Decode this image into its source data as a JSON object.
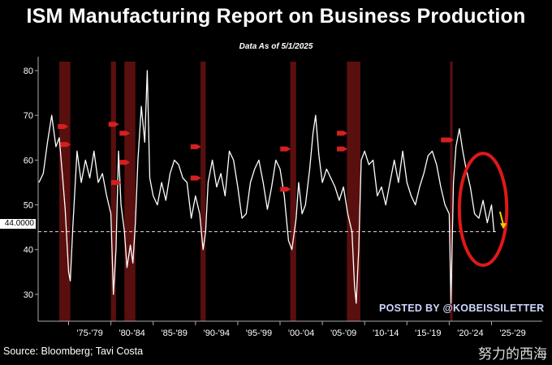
{
  "title": "ISM Manufacturing Report on Business Production",
  "subtitle": "Data As of 5/1/2025",
  "source": "Source: Bloomberg; Tavi Costa",
  "posted_by": "POSTED BY @KOBEISSILETTER",
  "watermark": "努力的西海",
  "reference_line_label": "44.0000",
  "colors": {
    "background": "#000000",
    "line": "#ffffff",
    "recession": "#5a0f0f",
    "circle": "#e01818",
    "arrow": "#f5d000",
    "marker": "#d42020"
  },
  "chart_data": {
    "type": "line",
    "title": "ISM Manufacturing Report on Business Production",
    "ylim": [
      24,
      82
    ],
    "xlim": [
      1971.4,
      2031.0
    ],
    "yticks": [
      30,
      40,
      50,
      60,
      70,
      80
    ],
    "x_tick_labels": [
      "'75-'79",
      "'80-'84",
      "'85-'89",
      "'90-'94",
      "'95-'99",
      "'00-'04",
      "'05-'09",
      "'10-'14",
      "'15-'19",
      "'20-'24",
      "'25-'29"
    ],
    "reference_line": 44.0,
    "recession_periods": [
      [
        1973.9,
        1975.2
      ],
      [
        1980.0,
        1980.6
      ],
      [
        1981.6,
        1982.9
      ],
      [
        1990.6,
        1991.2
      ],
      [
        2001.2,
        2001.9
      ],
      [
        2007.9,
        2009.5
      ],
      [
        2020.1,
        2020.4
      ]
    ],
    "series": [
      {
        "values": [
          [
            1971.5,
            55
          ],
          [
            1972.0,
            57
          ],
          [
            1972.5,
            64
          ],
          [
            1973.0,
            70
          ],
          [
            1973.5,
            63
          ],
          [
            1973.9,
            65
          ],
          [
            1974.3,
            56
          ],
          [
            1974.6,
            49
          ],
          [
            1975.0,
            35
          ],
          [
            1975.2,
            33
          ],
          [
            1975.5,
            45
          ],
          [
            1976.0,
            62
          ],
          [
            1976.5,
            55
          ],
          [
            1977.0,
            60
          ],
          [
            1977.5,
            56
          ],
          [
            1978.0,
            62
          ],
          [
            1978.5,
            55
          ],
          [
            1979.0,
            57
          ],
          [
            1979.5,
            52
          ],
          [
            1980.0,
            48
          ],
          [
            1980.3,
            30
          ],
          [
            1980.6,
            40
          ],
          [
            1980.9,
            62
          ],
          [
            1981.2,
            50
          ],
          [
            1981.6,
            44
          ],
          [
            1981.9,
            36
          ],
          [
            1982.3,
            41
          ],
          [
            1982.6,
            37
          ],
          [
            1982.9,
            46
          ],
          [
            1983.2,
            60
          ],
          [
            1983.6,
            72
          ],
          [
            1984.0,
            64
          ],
          [
            1984.3,
            80
          ],
          [
            1984.6,
            56
          ],
          [
            1985.0,
            52
          ],
          [
            1985.5,
            50
          ],
          [
            1986.0,
            55
          ],
          [
            1986.5,
            51
          ],
          [
            1987.0,
            57
          ],
          [
            1987.5,
            60
          ],
          [
            1988.0,
            59
          ],
          [
            1988.5,
            56
          ],
          [
            1989.0,
            55
          ],
          [
            1989.5,
            47
          ],
          [
            1990.0,
            52
          ],
          [
            1990.5,
            48
          ],
          [
            1990.9,
            40
          ],
          [
            1991.2,
            44
          ],
          [
            1991.5,
            55
          ],
          [
            1992.0,
            60
          ],
          [
            1992.5,
            54
          ],
          [
            1993.0,
            57
          ],
          [
            1993.5,
            52
          ],
          [
            1994.0,
            62
          ],
          [
            1994.5,
            60
          ],
          [
            1995.0,
            54
          ],
          [
            1995.5,
            47
          ],
          [
            1996.0,
            48
          ],
          [
            1996.5,
            55
          ],
          [
            1997.0,
            58
          ],
          [
            1997.5,
            60
          ],
          [
            1998.0,
            55
          ],
          [
            1998.5,
            49
          ],
          [
            1999.0,
            54
          ],
          [
            1999.5,
            60
          ],
          [
            2000.0,
            58
          ],
          [
            2000.5,
            52
          ],
          [
            2001.0,
            42
          ],
          [
            2001.4,
            40
          ],
          [
            2001.9,
            47
          ],
          [
            2002.2,
            55
          ],
          [
            2002.6,
            48
          ],
          [
            2003.0,
            50
          ],
          [
            2003.5,
            58
          ],
          [
            2003.9,
            66
          ],
          [
            2004.2,
            70
          ],
          [
            2004.6,
            61
          ],
          [
            2005.0,
            55
          ],
          [
            2005.5,
            58
          ],
          [
            2006.0,
            56
          ],
          [
            2006.5,
            54
          ],
          [
            2007.0,
            51
          ],
          [
            2007.5,
            54
          ],
          [
            2008.0,
            48
          ],
          [
            2008.5,
            44
          ],
          [
            2008.8,
            32
          ],
          [
            2009.0,
            28
          ],
          [
            2009.3,
            40
          ],
          [
            2009.6,
            60
          ],
          [
            2010.0,
            62
          ],
          [
            2010.5,
            59
          ],
          [
            2011.0,
            60
          ],
          [
            2011.5,
            52
          ],
          [
            2012.0,
            54
          ],
          [
            2012.5,
            50
          ],
          [
            2013.0,
            55
          ],
          [
            2013.5,
            60
          ],
          [
            2014.0,
            55
          ],
          [
            2014.5,
            62
          ],
          [
            2015.0,
            55
          ],
          [
            2015.5,
            52
          ],
          [
            2016.0,
            50
          ],
          [
            2016.5,
            54
          ],
          [
            2017.0,
            57
          ],
          [
            2017.5,
            61
          ],
          [
            2018.0,
            62
          ],
          [
            2018.5,
            59
          ],
          [
            2019.0,
            54
          ],
          [
            2019.5,
            50
          ],
          [
            2020.0,
            48
          ],
          [
            2020.2,
            28
          ],
          [
            2020.5,
            55
          ],
          [
            2020.8,
            63
          ],
          [
            2021.2,
            67
          ],
          [
            2021.6,
            62
          ],
          [
            2022.0,
            58
          ],
          [
            2022.5,
            54
          ],
          [
            2023.0,
            48
          ],
          [
            2023.5,
            47
          ],
          [
            2024.0,
            51
          ],
          [
            2024.5,
            46
          ],
          [
            2025.0,
            50
          ],
          [
            2025.3,
            44
          ]
        ]
      }
    ],
    "annotations": {
      "peak_markers": [
        [
          1974.3,
          67.5
        ],
        [
          1974.6,
          63.5
        ],
        [
          1980.3,
          68.0
        ],
        [
          1980.6,
          55.0
        ],
        [
          1981.6,
          66.0
        ],
        [
          1981.6,
          59.5
        ],
        [
          1990.0,
          63.0
        ],
        [
          1990.0,
          56.0
        ],
        [
          2000.6,
          62.5
        ],
        [
          2000.6,
          53.5
        ],
        [
          2007.3,
          66.0
        ],
        [
          2007.3,
          62.5
        ],
        [
          2019.6,
          64.5
        ],
        [
          2019.9,
          64.5
        ]
      ],
      "highlight_ellipse": {
        "cx": 2024.0,
        "cy": 49.0,
        "rx": 2.8,
        "ry": 12.5
      },
      "trend_arrow": {
        "from": [
          2026.0,
          48.5
        ],
        "to": [
          2026.4,
          44.8
        ]
      }
    }
  }
}
